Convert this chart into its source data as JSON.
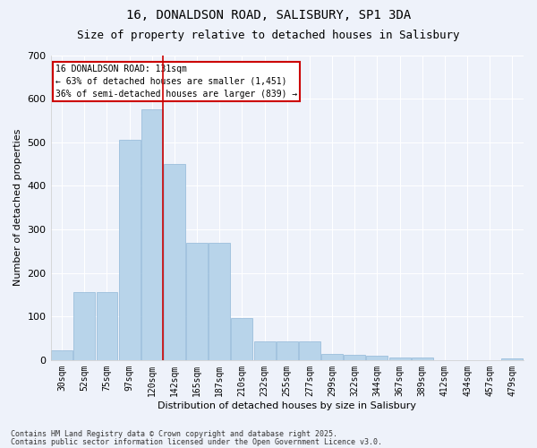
{
  "title": "16, DONALDSON ROAD, SALISBURY, SP1 3DA",
  "subtitle": "Size of property relative to detached houses in Salisbury",
  "xlabel": "Distribution of detached houses by size in Salisbury",
  "ylabel": "Number of detached properties",
  "footnote1": "Contains HM Land Registry data © Crown copyright and database right 2025.",
  "footnote2": "Contains public sector information licensed under the Open Government Licence v3.0.",
  "annotation_line1": "16 DONALDSON ROAD: 131sqm",
  "annotation_line2": "← 63% of detached houses are smaller (1,451)",
  "annotation_line3": "36% of semi-detached houses are larger (839) →",
  "categories": [
    "30sqm",
    "52sqm",
    "75sqm",
    "97sqm",
    "120sqm",
    "142sqm",
    "165sqm",
    "187sqm",
    "210sqm",
    "232sqm",
    "255sqm",
    "277sqm",
    "299sqm",
    "322sqm",
    "344sqm",
    "367sqm",
    "389sqm",
    "412sqm",
    "434sqm",
    "457sqm",
    "479sqm"
  ],
  "values": [
    22,
    155,
    155,
    505,
    575,
    450,
    270,
    270,
    97,
    42,
    42,
    42,
    15,
    13,
    10,
    5,
    5,
    0,
    0,
    0,
    3
  ],
  "bar_color": "#b8d4ea",
  "bar_edge_color": "#90b8d8",
  "vline_color": "#cc0000",
  "vline_x": 4.5,
  "background_color": "#eef2fa",
  "grid_color": "#ffffff",
  "annotation_box_edge_color": "#cc0000",
  "annotation_box_face_color": "#ffffff",
  "ylim": [
    0,
    700
  ],
  "yticks": [
    0,
    100,
    200,
    300,
    400,
    500,
    600,
    700
  ],
  "title_fontsize": 10,
  "subtitle_fontsize": 9,
  "tick_fontsize": 7,
  "ylabel_fontsize": 8,
  "xlabel_fontsize": 8,
  "footnote_fontsize": 6,
  "annotation_fontsize": 7
}
